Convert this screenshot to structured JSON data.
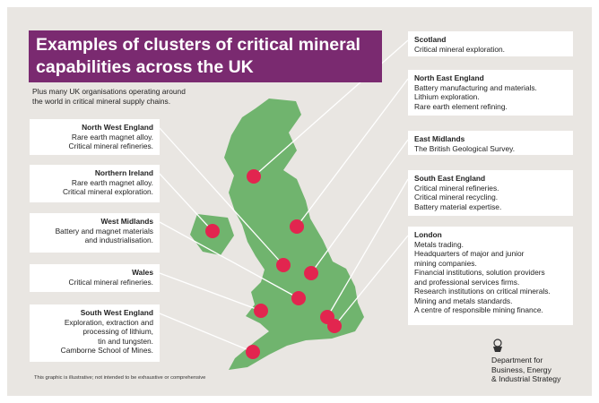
{
  "title": [
    "Examples of clusters of critical mineral",
    "capabilities across the UK"
  ],
  "subtitle": [
    "Plus many UK organisations operating around",
    "the world in critical mineral supply chains."
  ],
  "left_regions": [
    {
      "name": "North West England",
      "lines": [
        "Rare earth magnet alloy.",
        "Critical mineral refineries."
      ]
    },
    {
      "name": "Northern Ireland",
      "lines": [
        "Rare earth magnet alloy.",
        "Critical mineral exploration."
      ]
    },
    {
      "name": "West Midlands",
      "lines": [
        "Battery and magnet materials",
        "and industrialisation."
      ]
    },
    {
      "name": "Wales",
      "lines": [
        "Critical mineral refineries."
      ]
    },
    {
      "name": "South West England",
      "lines": [
        "Exploration, extraction and",
        "processing of lithium,",
        "tin and tungsten.",
        "Camborne School of Mines."
      ]
    }
  ],
  "right_regions": [
    {
      "name": "Scotland",
      "lines": [
        "Critical mineral exploration."
      ]
    },
    {
      "name": "North East England",
      "lines": [
        "Battery manufacturing and materials.",
        "Lithium exploration.",
        "Rare earth element refining."
      ]
    },
    {
      "name": "East Midlands",
      "lines": [
        "The British Geological Survey."
      ]
    },
    {
      "name": "South East England",
      "lines": [
        "Critical mineral refineries.",
        "Critical mineral recycling.",
        "Battery material expertise."
      ]
    },
    {
      "name": "London",
      "lines": [
        "Metals trading.",
        "Headquarters of major and junior",
        "mining companies.",
        "Financial institutions, solution providers",
        "and professional services firms.",
        "Research institutions on critical minerals.",
        "Mining and metals standards.",
        "A centre of responsible mining finance."
      ]
    }
  ],
  "footnote": "This graphic is illustrative; not intended to be exhaustive or comprehensive",
  "logo": [
    "Department for",
    "Business, Energy",
    "& Industrial Strategy"
  ]
}
